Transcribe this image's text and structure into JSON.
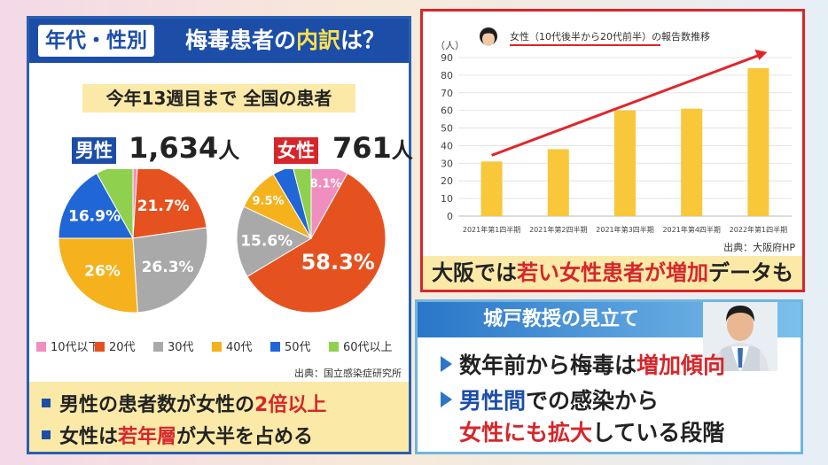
{
  "left_panel": {
    "tag": "年代・性別",
    "title_pre": "梅毒患者の",
    "title_hl": "内訳",
    "title_post": "は？",
    "period": "今年13週目まで 全国の患者",
    "male_label": "男性",
    "male_count": "1,634",
    "female_label": "女性",
    "female_count": "761",
    "unit": "人",
    "source": "出典：国立感染症研究所",
    "bullet1_pre": "男性の患者数が女性の",
    "bullet1_hl": "2倍以上",
    "bullet2_pre": "女性は",
    "bullet2_hl": "若年層",
    "bullet2_post": "が大半を占める"
  },
  "right_panel": {
    "chart_caption_pre": "大阪では",
    "chart_caption_hl": "若い女性患者が増加",
    "chart_caption_post": "データも",
    "source": "出典：大阪府HP"
  },
  "opinion": {
    "title": "城戸教授の見立て",
    "b1_pre": "数年前から梅毒は",
    "b1_hl": "増加傾向",
    "b2_line1_hl": "男性間",
    "b2_line1_post": "での感染から",
    "b2_line2_hl": "女性にも拡大",
    "b2_line2_post": "している段階"
  },
  "colors": {
    "age_10s": "#f08fbf",
    "age_20s": "#e6521f",
    "age_30s": "#a9a9a9",
    "age_40s": "#f6b21c",
    "age_50s": "#2166d6",
    "age_60s": "#8fd14f",
    "bar": "#f8c73a",
    "arrow": "#e0262b"
  },
  "chart_data": [
    {
      "type": "pie",
      "name": "男性",
      "categories": [
        "10代以下",
        "20代",
        "30代",
        "40代",
        "50代",
        "60代以上"
      ],
      "values": [
        1.0,
        21.7,
        26.3,
        26.0,
        16.9,
        8.1
      ],
      "labels": [
        "",
        "21.7%",
        "26.3%",
        "26%",
        "16.9%",
        ""
      ]
    },
    {
      "type": "pie",
      "name": "女性",
      "categories": [
        "10代以下",
        "20代",
        "30代",
        "40代",
        "50代",
        "60代以上"
      ],
      "values": [
        8.1,
        58.3,
        15.6,
        9.5,
        4.5,
        4.0
      ],
      "labels": [
        "8.1%",
        "58.3%",
        "15.6%",
        "9.5%",
        "",
        ""
      ]
    },
    {
      "type": "bar",
      "title": "女性（10代後半から20代前半）の報告数推移",
      "ylabel": "（人）",
      "categories": [
        "2021年第1四半期",
        "2021年第2四半期",
        "2021年第3四半期",
        "2021年第4四半期",
        "2022年第1四半期"
      ],
      "values": [
        31,
        38,
        60,
        61,
        84
      ],
      "ylim": [
        0,
        90
      ],
      "yticks": [
        0,
        10,
        20,
        30,
        40,
        50,
        60,
        70,
        80,
        90
      ],
      "grid": true
    }
  ]
}
